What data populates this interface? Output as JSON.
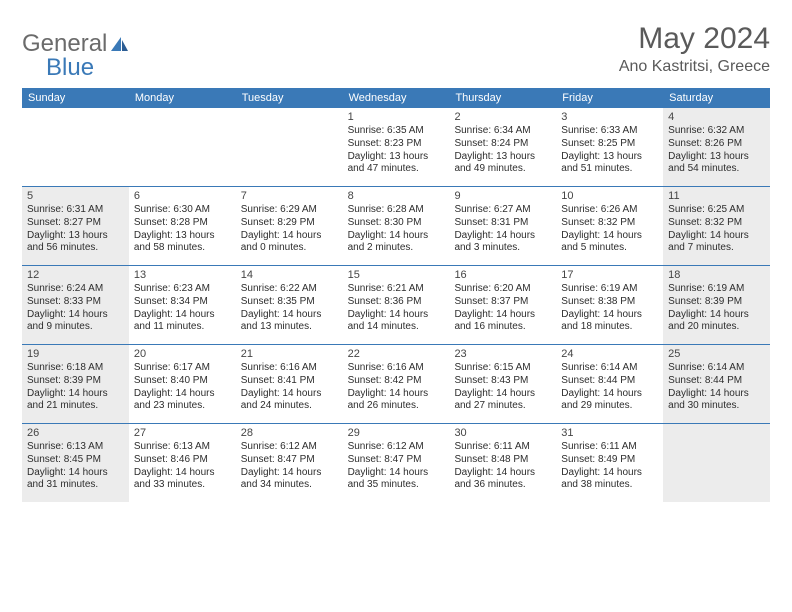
{
  "brand": {
    "part1": "General",
    "part2": "Blue"
  },
  "title": "May 2024",
  "location": "Ano Kastritsi, Greece",
  "colors": {
    "accent": "#3a79b7",
    "shaded_bg": "#ececec",
    "page_bg": "#ffffff",
    "text": "#2d2d2d",
    "muted_text": "#5a5a5a"
  },
  "typography": {
    "title_fontsize": 30,
    "location_fontsize": 16,
    "header_fontsize": 11,
    "daynum_fontsize": 11,
    "info_fontsize": 10
  },
  "layout": {
    "columns": 7,
    "rows": 5,
    "week_divider_color": "#3a79b7",
    "week_divider_width": 1.5
  },
  "day_labels": [
    "Sunday",
    "Monday",
    "Tuesday",
    "Wednesday",
    "Thursday",
    "Friday",
    "Saturday"
  ],
  "weeks": [
    [
      {
        "num": "",
        "sunrise": "",
        "sunset": "",
        "daylight": "",
        "shaded": false
      },
      {
        "num": "",
        "sunrise": "",
        "sunset": "",
        "daylight": "",
        "shaded": false
      },
      {
        "num": "",
        "sunrise": "",
        "sunset": "",
        "daylight": "",
        "shaded": false
      },
      {
        "num": "1",
        "sunrise": "Sunrise: 6:35 AM",
        "sunset": "Sunset: 8:23 PM",
        "daylight": "Daylight: 13 hours and 47 minutes.",
        "shaded": false
      },
      {
        "num": "2",
        "sunrise": "Sunrise: 6:34 AM",
        "sunset": "Sunset: 8:24 PM",
        "daylight": "Daylight: 13 hours and 49 minutes.",
        "shaded": false
      },
      {
        "num": "3",
        "sunrise": "Sunrise: 6:33 AM",
        "sunset": "Sunset: 8:25 PM",
        "daylight": "Daylight: 13 hours and 51 minutes.",
        "shaded": false
      },
      {
        "num": "4",
        "sunrise": "Sunrise: 6:32 AM",
        "sunset": "Sunset: 8:26 PM",
        "daylight": "Daylight: 13 hours and 54 minutes.",
        "shaded": true
      }
    ],
    [
      {
        "num": "5",
        "sunrise": "Sunrise: 6:31 AM",
        "sunset": "Sunset: 8:27 PM",
        "daylight": "Daylight: 13 hours and 56 minutes.",
        "shaded": true
      },
      {
        "num": "6",
        "sunrise": "Sunrise: 6:30 AM",
        "sunset": "Sunset: 8:28 PM",
        "daylight": "Daylight: 13 hours and 58 minutes.",
        "shaded": false
      },
      {
        "num": "7",
        "sunrise": "Sunrise: 6:29 AM",
        "sunset": "Sunset: 8:29 PM",
        "daylight": "Daylight: 14 hours and 0 minutes.",
        "shaded": false
      },
      {
        "num": "8",
        "sunrise": "Sunrise: 6:28 AM",
        "sunset": "Sunset: 8:30 PM",
        "daylight": "Daylight: 14 hours and 2 minutes.",
        "shaded": false
      },
      {
        "num": "9",
        "sunrise": "Sunrise: 6:27 AM",
        "sunset": "Sunset: 8:31 PM",
        "daylight": "Daylight: 14 hours and 3 minutes.",
        "shaded": false
      },
      {
        "num": "10",
        "sunrise": "Sunrise: 6:26 AM",
        "sunset": "Sunset: 8:32 PM",
        "daylight": "Daylight: 14 hours and 5 minutes.",
        "shaded": false
      },
      {
        "num": "11",
        "sunrise": "Sunrise: 6:25 AM",
        "sunset": "Sunset: 8:32 PM",
        "daylight": "Daylight: 14 hours and 7 minutes.",
        "shaded": true
      }
    ],
    [
      {
        "num": "12",
        "sunrise": "Sunrise: 6:24 AM",
        "sunset": "Sunset: 8:33 PM",
        "daylight": "Daylight: 14 hours and 9 minutes.",
        "shaded": true
      },
      {
        "num": "13",
        "sunrise": "Sunrise: 6:23 AM",
        "sunset": "Sunset: 8:34 PM",
        "daylight": "Daylight: 14 hours and 11 minutes.",
        "shaded": false
      },
      {
        "num": "14",
        "sunrise": "Sunrise: 6:22 AM",
        "sunset": "Sunset: 8:35 PM",
        "daylight": "Daylight: 14 hours and 13 minutes.",
        "shaded": false
      },
      {
        "num": "15",
        "sunrise": "Sunrise: 6:21 AM",
        "sunset": "Sunset: 8:36 PM",
        "daylight": "Daylight: 14 hours and 14 minutes.",
        "shaded": false
      },
      {
        "num": "16",
        "sunrise": "Sunrise: 6:20 AM",
        "sunset": "Sunset: 8:37 PM",
        "daylight": "Daylight: 14 hours and 16 minutes.",
        "shaded": false
      },
      {
        "num": "17",
        "sunrise": "Sunrise: 6:19 AM",
        "sunset": "Sunset: 8:38 PM",
        "daylight": "Daylight: 14 hours and 18 minutes.",
        "shaded": false
      },
      {
        "num": "18",
        "sunrise": "Sunrise: 6:19 AM",
        "sunset": "Sunset: 8:39 PM",
        "daylight": "Daylight: 14 hours and 20 minutes.",
        "shaded": true
      }
    ],
    [
      {
        "num": "19",
        "sunrise": "Sunrise: 6:18 AM",
        "sunset": "Sunset: 8:39 PM",
        "daylight": "Daylight: 14 hours and 21 minutes.",
        "shaded": true
      },
      {
        "num": "20",
        "sunrise": "Sunrise: 6:17 AM",
        "sunset": "Sunset: 8:40 PM",
        "daylight": "Daylight: 14 hours and 23 minutes.",
        "shaded": false
      },
      {
        "num": "21",
        "sunrise": "Sunrise: 6:16 AM",
        "sunset": "Sunset: 8:41 PM",
        "daylight": "Daylight: 14 hours and 24 minutes.",
        "shaded": false
      },
      {
        "num": "22",
        "sunrise": "Sunrise: 6:16 AM",
        "sunset": "Sunset: 8:42 PM",
        "daylight": "Daylight: 14 hours and 26 minutes.",
        "shaded": false
      },
      {
        "num": "23",
        "sunrise": "Sunrise: 6:15 AM",
        "sunset": "Sunset: 8:43 PM",
        "daylight": "Daylight: 14 hours and 27 minutes.",
        "shaded": false
      },
      {
        "num": "24",
        "sunrise": "Sunrise: 6:14 AM",
        "sunset": "Sunset: 8:44 PM",
        "daylight": "Daylight: 14 hours and 29 minutes.",
        "shaded": false
      },
      {
        "num": "25",
        "sunrise": "Sunrise: 6:14 AM",
        "sunset": "Sunset: 8:44 PM",
        "daylight": "Daylight: 14 hours and 30 minutes.",
        "shaded": true
      }
    ],
    [
      {
        "num": "26",
        "sunrise": "Sunrise: 6:13 AM",
        "sunset": "Sunset: 8:45 PM",
        "daylight": "Daylight: 14 hours and 31 minutes.",
        "shaded": true
      },
      {
        "num": "27",
        "sunrise": "Sunrise: 6:13 AM",
        "sunset": "Sunset: 8:46 PM",
        "daylight": "Daylight: 14 hours and 33 minutes.",
        "shaded": false
      },
      {
        "num": "28",
        "sunrise": "Sunrise: 6:12 AM",
        "sunset": "Sunset: 8:47 PM",
        "daylight": "Daylight: 14 hours and 34 minutes.",
        "shaded": false
      },
      {
        "num": "29",
        "sunrise": "Sunrise: 6:12 AM",
        "sunset": "Sunset: 8:47 PM",
        "daylight": "Daylight: 14 hours and 35 minutes.",
        "shaded": false
      },
      {
        "num": "30",
        "sunrise": "Sunrise: 6:11 AM",
        "sunset": "Sunset: 8:48 PM",
        "daylight": "Daylight: 14 hours and 36 minutes.",
        "shaded": false
      },
      {
        "num": "31",
        "sunrise": "Sunrise: 6:11 AM",
        "sunset": "Sunset: 8:49 PM",
        "daylight": "Daylight: 14 hours and 38 minutes.",
        "shaded": false
      },
      {
        "num": "",
        "sunrise": "",
        "sunset": "",
        "daylight": "",
        "shaded": true
      }
    ]
  ]
}
